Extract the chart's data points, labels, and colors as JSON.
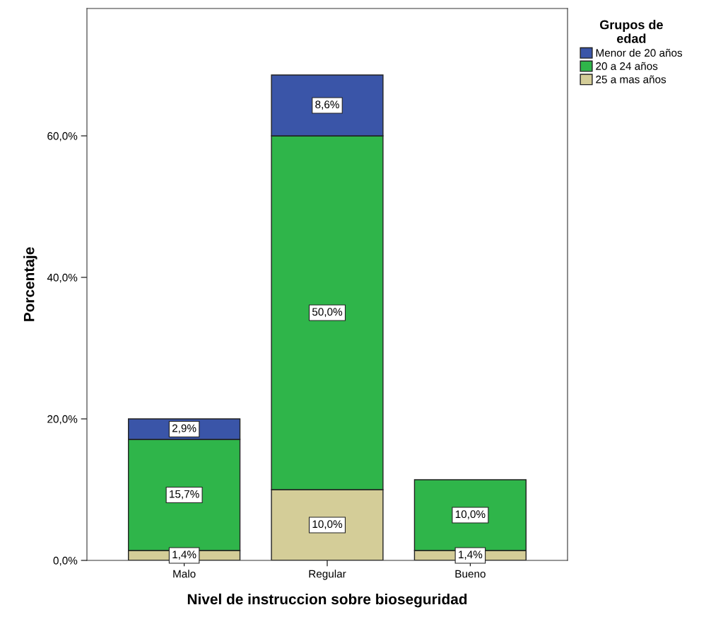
{
  "chart_data": {
    "type": "bar",
    "stacked": true,
    "xlabel": "Nivel de instruccion sobre bioseguridad",
    "ylabel": "Porcentaje",
    "legend_title": "Grupos de\nedad",
    "legend": "right",
    "categories": [
      "Malo",
      "Regular",
      "Bueno"
    ],
    "series": [
      {
        "name": "25 a mas años",
        "color": "#d4cd98",
        "values": [
          1.4,
          10.0,
          1.4
        ],
        "value_labels": [
          "1,4%",
          "10,0%",
          "1,4%"
        ]
      },
      {
        "name": "20 a 24 años",
        "color": "#2fb54a",
        "values": [
          15.7,
          50.0,
          10.0
        ],
        "value_labels": [
          "15,7%",
          "50,0%",
          "10,0%"
        ]
      },
      {
        "name": "Menor de 20 años",
        "color": "#3a55a8",
        "values": [
          2.9,
          8.6,
          null
        ],
        "value_labels": [
          "2,9%",
          "8,6%",
          null
        ]
      }
    ],
    "ylim": [
      0,
      78
    ],
    "yticks": [
      {
        "value": 0,
        "label": "0,0%"
      },
      {
        "value": 20,
        "label": "20,0%"
      },
      {
        "value": 40,
        "label": "40,0%"
      },
      {
        "value": 60,
        "label": "60,0%"
      }
    ],
    "grid": false
  }
}
